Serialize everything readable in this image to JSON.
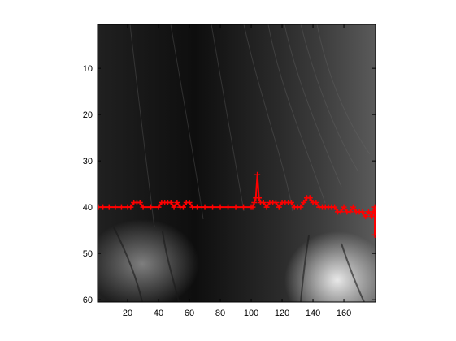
{
  "chart_data": {
    "type": "scatter",
    "background": "grayscale image of dark hair with bright skin patches in the lower left and lower right",
    "xlim": [
      0.5,
      180.5
    ],
    "ylim": [
      60.5,
      0.5
    ],
    "y_direction": "reversed",
    "grid": false,
    "x_ticks": [
      20,
      40,
      60,
      80,
      100,
      120,
      140,
      160
    ],
    "y_ticks": [
      10,
      20,
      30,
      40,
      50,
      60
    ],
    "series": [
      {
        "color": "#ff0000",
        "marker": "plus",
        "x": [
          1,
          4,
          8,
          12,
          16,
          20,
          22,
          24,
          26,
          28,
          30,
          35,
          40,
          42,
          44,
          46,
          48,
          50,
          52,
          54,
          56,
          58,
          60,
          62,
          65,
          70,
          75,
          80,
          85,
          90,
          95,
          100,
          101,
          102,
          103,
          104,
          105,
          106,
          108,
          110,
          112,
          114,
          116,
          118,
          120,
          122,
          124,
          126,
          128,
          130,
          132,
          134,
          136,
          138,
          140,
          142,
          144,
          146,
          148,
          150,
          152,
          154,
          156,
          158,
          160,
          162,
          164,
          166,
          168,
          170,
          172,
          174,
          176,
          178,
          179,
          180,
          180,
          180
        ],
        "y": [
          40,
          40,
          40,
          40,
          40,
          40,
          40,
          39,
          39,
          39,
          40,
          40,
          40,
          39,
          39,
          39,
          39,
          40,
          39,
          40,
          40,
          39,
          39,
          40,
          40,
          40,
          40,
          40,
          40,
          40,
          40,
          40,
          40,
          39,
          38,
          33,
          38,
          39,
          39,
          40,
          39,
          39,
          39,
          40,
          39,
          39,
          39,
          39,
          40,
          40,
          40,
          39,
          38,
          38,
          39,
          39,
          40,
          40,
          40,
          40,
          40,
          40,
          41,
          41,
          40,
          41,
          41,
          40,
          41,
          41,
          41,
          42,
          41,
          42,
          41,
          40,
          42,
          46
        ]
      }
    ]
  }
}
